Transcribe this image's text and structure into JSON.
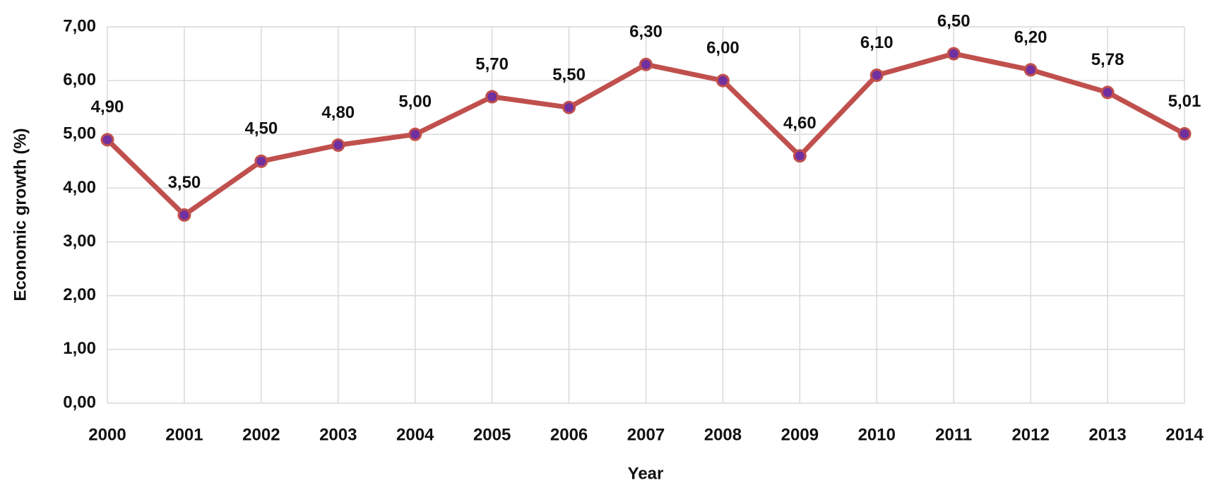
{
  "chart_data": {
    "type": "line",
    "x_label": "Year",
    "y_label": "Economic growth (%)",
    "categories": [
      "2000",
      "2001",
      "2002",
      "2003",
      "2004",
      "2005",
      "2006",
      "2007",
      "2008",
      "2009",
      "2010",
      "2011",
      "2012",
      "2013",
      "2014"
    ],
    "series": [
      {
        "color": "#c0504d",
        "marker_color": "#7030a0",
        "values": [
          4.9,
          3.5,
          4.5,
          4.8,
          5.0,
          5.7,
          5.5,
          6.3,
          6.0,
          4.6,
          6.1,
          6.5,
          6.2,
          5.78,
          5.01
        ],
        "value_labels": [
          "4,90",
          "3,50",
          "4,50",
          "4,80",
          "5,00",
          "5,70",
          "5,50",
          "6,30",
          "6,00",
          "4,60",
          "6,10",
          "6,50",
          "6,20",
          "5,78",
          "5,01"
        ]
      }
    ],
    "ylim": [
      0,
      7
    ],
    "yticks": [
      {
        "value": 0,
        "label": "0,00"
      },
      {
        "value": 1,
        "label": "1,00"
      },
      {
        "value": 2,
        "label": "2,00"
      },
      {
        "value": 3,
        "label": "3,00"
      },
      {
        "value": 4,
        "label": "4,00"
      },
      {
        "value": 5,
        "label": "5,00"
      },
      {
        "value": 6,
        "label": "6,00"
      },
      {
        "value": 7,
        "label": "7,00"
      }
    ],
    "grid": true
  }
}
